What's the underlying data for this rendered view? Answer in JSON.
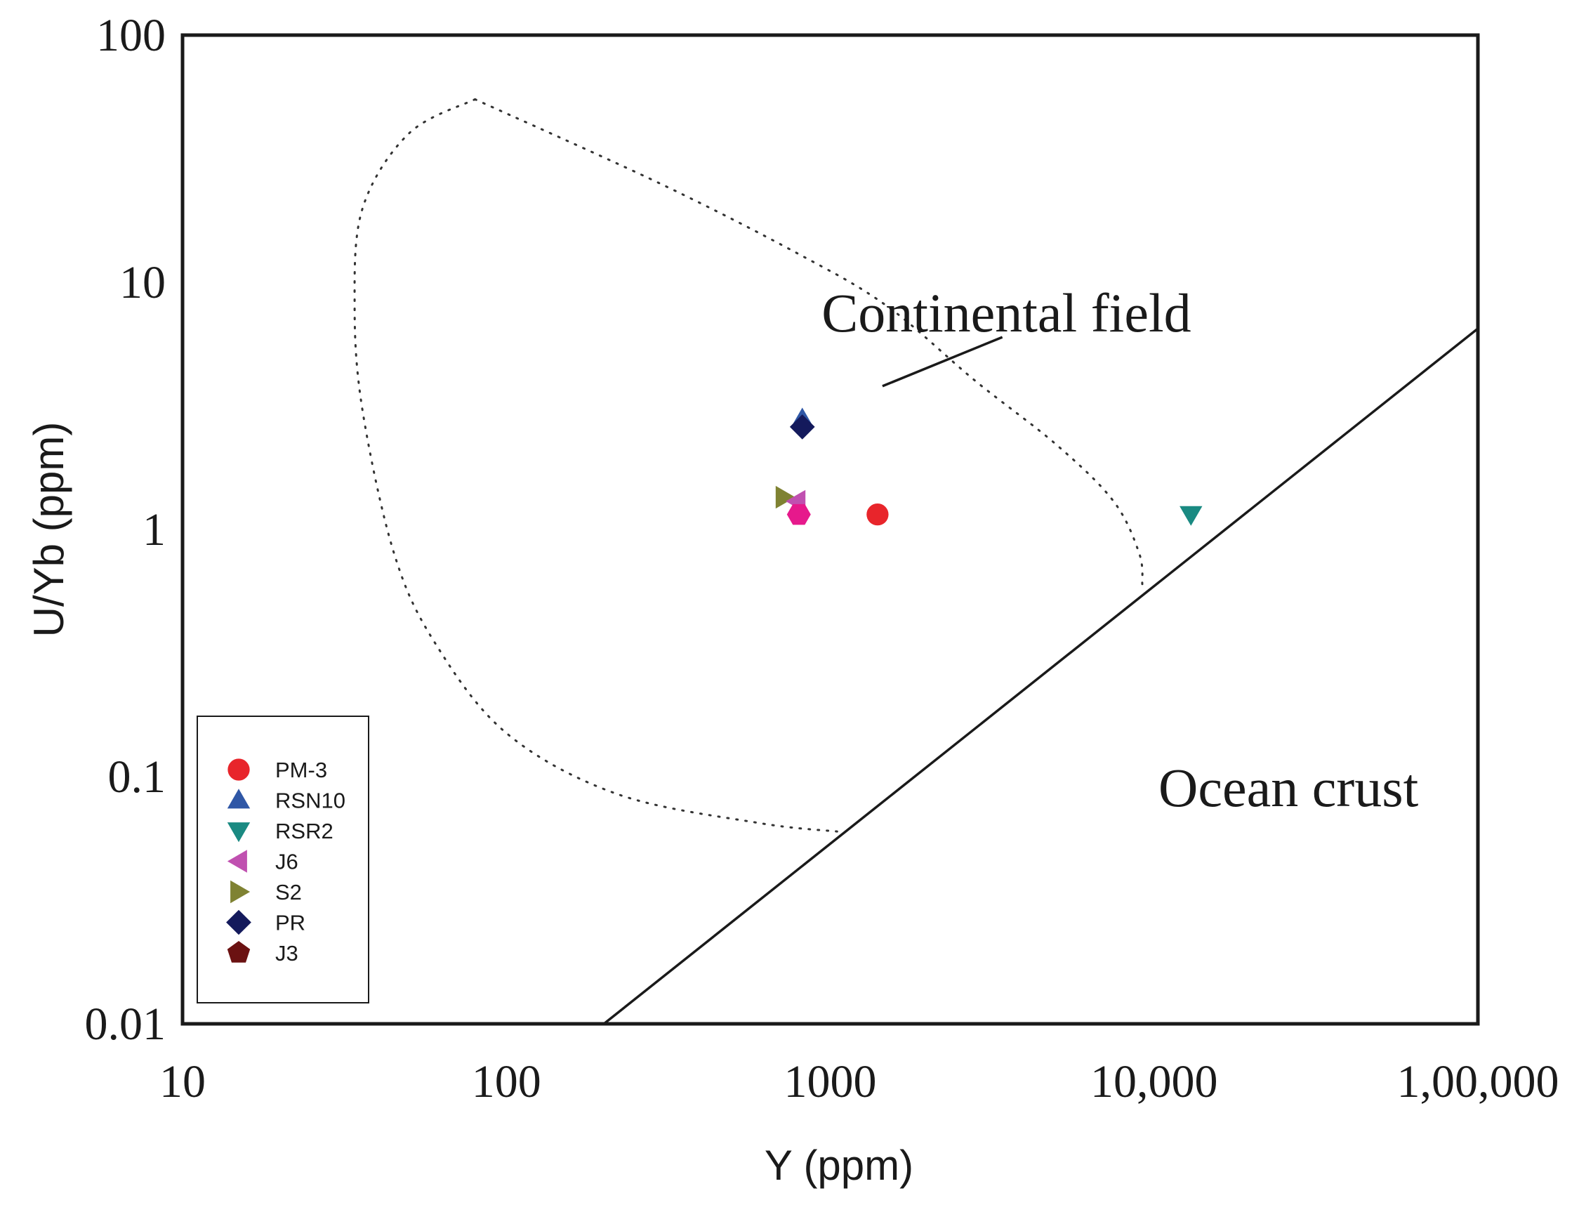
{
  "chart_data": {
    "type": "scatter",
    "title": "",
    "xlabel": "Y (ppm)",
    "ylabel": "U/Yb (ppm)",
    "xscale": "log",
    "yscale": "log",
    "xlim": [
      10,
      100000
    ],
    "ylim": [
      0.01,
      100
    ],
    "x_ticks": [
      {
        "value": 10,
        "label": "10"
      },
      {
        "value": 100,
        "label": "100"
      },
      {
        "value": 1000,
        "label": "1000"
      },
      {
        "value": 10000,
        "label": "10,000"
      },
      {
        "value": 100000,
        "label": "1,00,000"
      }
    ],
    "y_ticks": [
      {
        "value": 100,
        "label": "100"
      },
      {
        "value": 10,
        "label": "10"
      },
      {
        "value": 1,
        "label": "1"
      },
      {
        "value": 0.1,
        "label": "0.1"
      },
      {
        "value": 0.01,
        "label": "0.01"
      }
    ],
    "legend_position": "bottom-left",
    "series": [
      {
        "name": "PM-3",
        "marker": "circle",
        "color": "#e8252b",
        "points": [
          {
            "x": 1400,
            "y": 1.15
          }
        ]
      },
      {
        "name": "RSN10",
        "marker": "triangle-up",
        "color": "#2f57a6",
        "points": [
          {
            "x": 820,
            "y": 2.8
          }
        ]
      },
      {
        "name": "RSR2",
        "marker": "triangle-down",
        "color": "#1a8a82",
        "points": [
          {
            "x": 13000,
            "y": 1.15
          }
        ]
      },
      {
        "name": "J6",
        "marker": "triangle-left",
        "color": "#c050b0",
        "points": [
          {
            "x": 790,
            "y": 1.3
          }
        ]
      },
      {
        "name": "S2",
        "marker": "triangle-right",
        "color": "#7f8232",
        "points": [
          {
            "x": 720,
            "y": 1.35
          }
        ]
      },
      {
        "name": "PR",
        "marker": "diamond",
        "color": "#141a5c",
        "points": [
          {
            "x": 820,
            "y": 2.6
          }
        ]
      },
      {
        "name": "J3",
        "marker": "pentagon",
        "color": "#6b1212",
        "points": []
      },
      {
        "name": "",
        "marker": "hexagon",
        "color": "#e6198c",
        "points": [
          {
            "x": 800,
            "y": 1.15
          }
        ]
      }
    ],
    "boundary_line": {
      "style": "solid",
      "from": {
        "x": 200,
        "y": 0.01
      },
      "to": {
        "x": 100000,
        "y": 6.5
      }
    },
    "continental_field": {
      "style": "dotted",
      "outline": [
        {
          "x": 80,
          "y": 55
        },
        {
          "x": 50,
          "y": 40
        },
        {
          "x": 36,
          "y": 20
        },
        {
          "x": 34,
          "y": 8
        },
        {
          "x": 36,
          "y": 3
        },
        {
          "x": 45,
          "y": 0.8
        },
        {
          "x": 60,
          "y": 0.35
        },
        {
          "x": 100,
          "y": 0.15
        },
        {
          "x": 220,
          "y": 0.085
        },
        {
          "x": 600,
          "y": 0.065
        },
        {
          "x": 1050,
          "y": 0.06
        }
      ],
      "outline_right": [
        {
          "x": 80,
          "y": 55
        },
        {
          "x": 300,
          "y": 25
        },
        {
          "x": 800,
          "y": 13
        },
        {
          "x": 1500,
          "y": 8
        },
        {
          "x": 2800,
          "y": 4
        },
        {
          "x": 5000,
          "y": 2.2
        },
        {
          "x": 7500,
          "y": 1.3
        },
        {
          "x": 9000,
          "y": 0.8
        },
        {
          "x": 9200,
          "y": 0.6
        }
      ]
    },
    "annotations": [
      {
        "text": "Continental field",
        "x": 3500,
        "y": 7.5,
        "leader": {
          "from": {
            "x": 1450,
            "y": 3.8
          },
          "to": {
            "x": 3400,
            "y": 6.0
          }
        }
      },
      {
        "text": "Ocean crust",
        "x": 26000,
        "y": 0.09
      }
    ]
  }
}
